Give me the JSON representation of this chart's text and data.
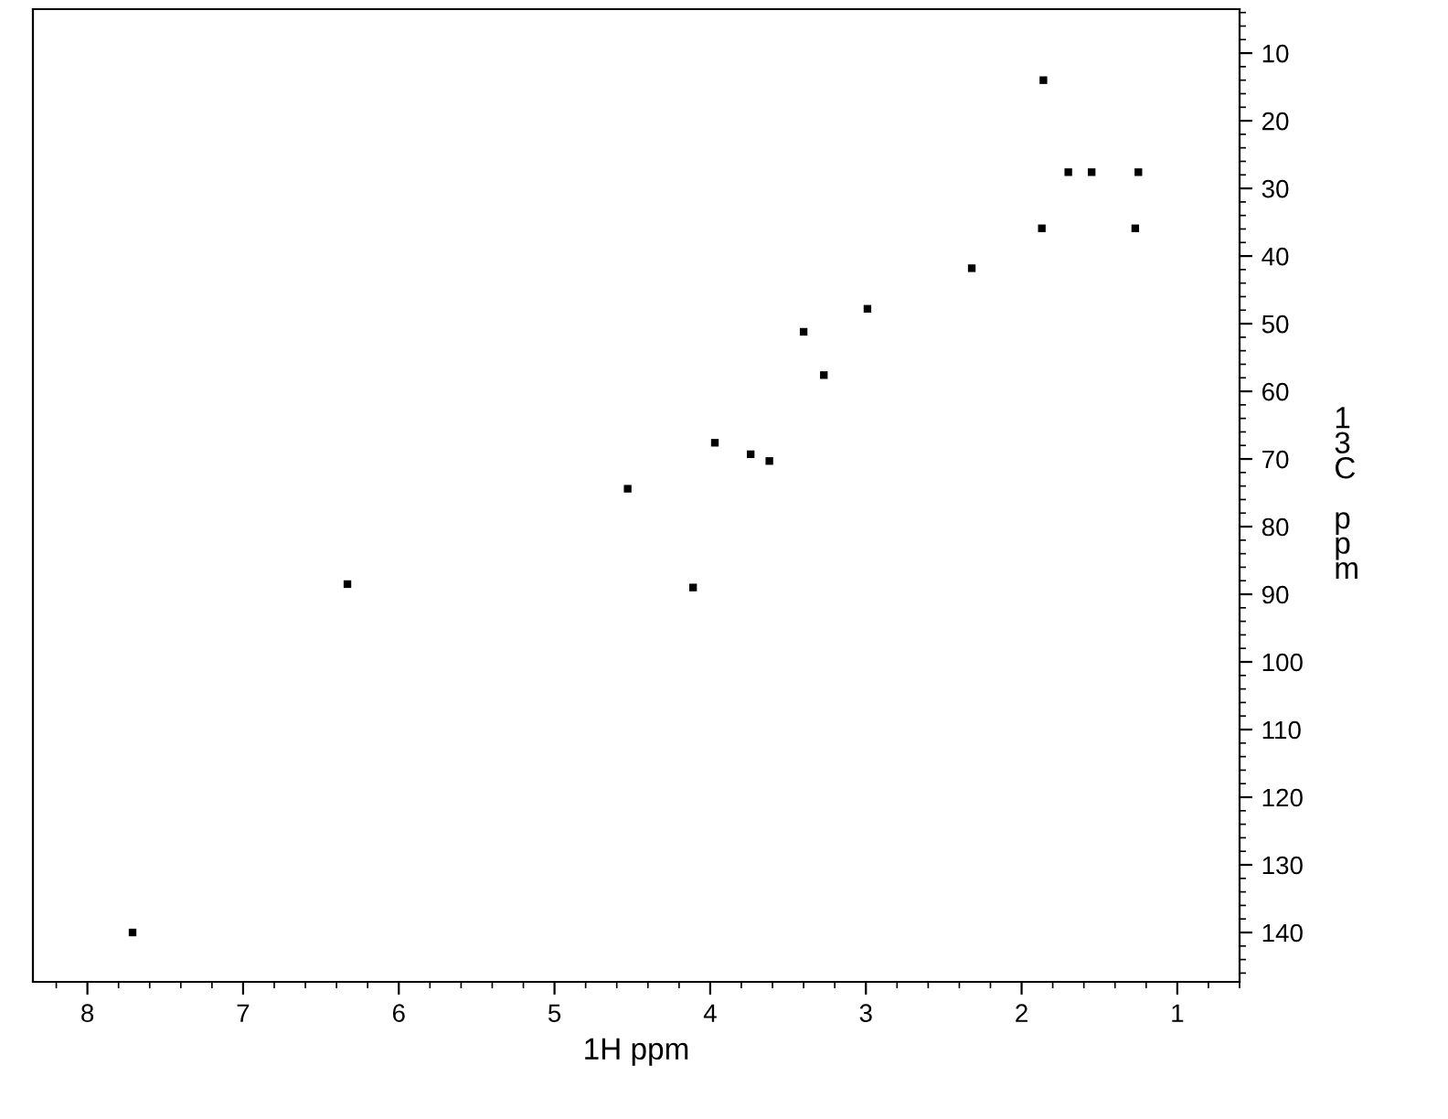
{
  "chart_data": {
    "type": "scatter",
    "xlabel": "1H ppm",
    "ylabel": "13C ppm",
    "x": [
      1.86,
      1.7,
      1.55,
      1.25,
      1.87,
      1.27,
      2.32,
      2.99,
      3.4,
      3.27,
      3.97,
      3.74,
      3.62,
      4.53,
      4.11,
      6.33,
      7.71
    ],
    "series": [
      {
        "color": "#000000",
        "values": [
          14.0,
          27.6,
          27.6,
          27.6,
          35.9,
          35.9,
          41.8,
          47.8,
          51.2,
          57.6,
          67.6,
          69.3,
          70.3,
          74.4,
          89.0,
          88.5,
          140
        ]
      }
    ],
    "xlim": [
      8.35,
      0.6
    ],
    "xticks": [
      8,
      7,
      6,
      5,
      4,
      3,
      2,
      1
    ],
    "ylim": [
      147.3,
      3.5
    ],
    "yticks": [
      10,
      20,
      30,
      40,
      50,
      60,
      70,
      80,
      90,
      100,
      110,
      120,
      130,
      140
    ],
    "marker": "square",
    "grid": false,
    "legend": false
  }
}
